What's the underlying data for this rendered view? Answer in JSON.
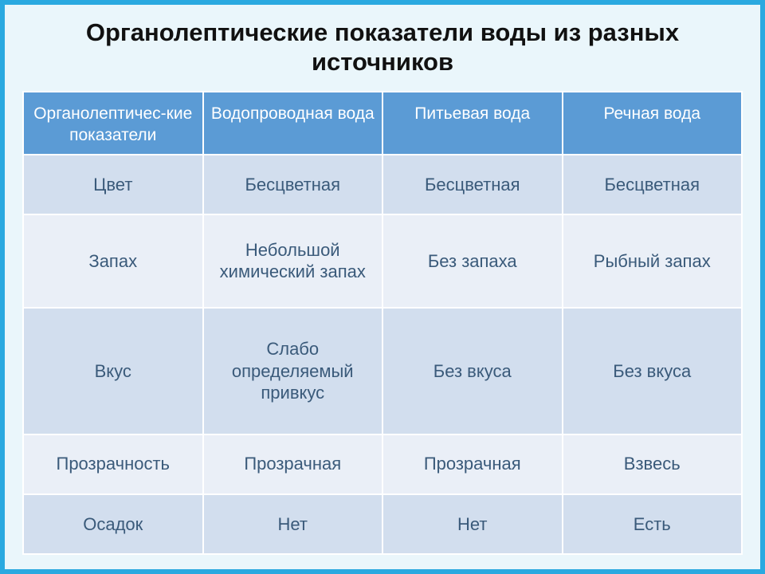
{
  "title": "Органолептические показатели воды из разных источников",
  "title_fontsize": 31,
  "table": {
    "type": "table",
    "header_bg": "#5b9bd5",
    "header_text_color": "#ffffff",
    "row_colors_alt": [
      "#d2deee",
      "#eaeff7"
    ],
    "body_text_color": "#3a5a7a",
    "body_fontsize": 22,
    "header_fontsize": 21,
    "column_widths": [
      "25%",
      "25%",
      "25%",
      "25%"
    ],
    "columns": [
      "Органолептичес-кие показатели",
      "Водопроводная вода",
      "Питьевая вода",
      "Речная вода"
    ],
    "rows": [
      [
        "Цвет",
        "Бесцветная",
        "Бесцветная",
        "Бесцветная"
      ],
      [
        "Запах",
        "Небольшой химический запах",
        "Без запаха",
        "Рыбный запах"
      ],
      [
        "Вкус",
        "Слабо определяемый привкус",
        "Без вкуса",
        "Без вкуса"
      ],
      [
        "Прозрачность",
        "Прозрачная",
        "Прозрачная",
        "Взвесь"
      ],
      [
        "Осадок",
        "Нет",
        "Нет",
        "Есть"
      ]
    ]
  },
  "frame_border_color": "#2aa9e0",
  "background_color": "#eaf6fb"
}
